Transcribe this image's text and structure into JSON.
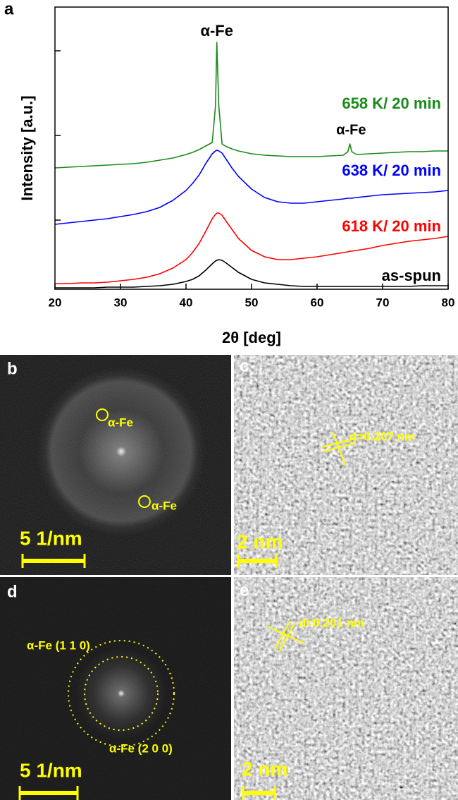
{
  "chart_data": {
    "type": "line",
    "panel_label": "a",
    "xlabel": "2θ [deg]",
    "ylabel": "Intensity [a.u.]",
    "x": [
      20,
      22,
      24,
      26,
      28,
      30,
      32,
      34,
      36,
      38,
      40,
      41,
      42,
      43,
      44,
      44.5,
      44.7,
      45,
      45.5,
      46,
      47,
      48,
      50,
      52,
      54,
      56,
      58,
      60,
      62,
      64,
      64.7,
      65,
      65.3,
      66,
      68,
      70,
      72,
      74,
      76,
      78,
      80
    ],
    "series": [
      {
        "name": "as-spun",
        "color": "#000000",
        "values": [
          2,
          2,
          2,
          2,
          3,
          3,
          3,
          4,
          5,
          7,
          11,
          14,
          19,
          27,
          36,
          40,
          41,
          42,
          41,
          38,
          31,
          24,
          14,
          9,
          7,
          5,
          4,
          4,
          4,
          4,
          4,
          4,
          4,
          4,
          4,
          4,
          4,
          4,
          5,
          5,
          5
        ]
      },
      {
        "name": "618 K/ 20 min",
        "color": "#ff0000",
        "values": [
          8,
          8,
          9,
          9,
          10,
          12,
          14,
          17,
          22,
          30,
          42,
          52,
          65,
          82,
          100,
          106,
          108,
          108,
          105,
          98,
          85,
          72,
          55,
          46,
          42,
          42,
          44,
          46,
          49,
          52,
          53,
          54,
          54,
          55,
          58,
          62,
          65,
          68,
          70,
          72,
          75
        ]
      },
      {
        "name": "638 K/ 20 min",
        "color": "#0000ff",
        "values": [
          92,
          94,
          96,
          98,
          100,
          103,
          106,
          110,
          116,
          126,
          140,
          150,
          162,
          178,
          192,
          196,
          197,
          196,
          193,
          186,
          172,
          160,
          142,
          130,
          124,
          122,
          122,
          124,
          126,
          128,
          129,
          129,
          129,
          130,
          132,
          134,
          135,
          136,
          137,
          138,
          140
        ]
      },
      {
        "name": "658 K/ 20 min",
        "color": "#1a8a1a",
        "values": [
          172,
          173,
          174,
          175,
          176,
          177,
          178,
          180,
          183,
          186,
          191,
          194,
          198,
          203,
          208,
          260,
          350,
          260,
          206,
          203,
          199,
          196,
          192,
          190,
          189,
          188,
          188,
          188,
          189,
          190,
          195,
          206,
          195,
          191,
          192,
          193,
          194,
          195,
          195,
          196,
          196
        ]
      }
    ],
    "annotations": [
      "α-Fe",
      "α-Fe"
    ],
    "xlim": [
      20,
      80
    ],
    "xticks": [
      20,
      30,
      40,
      50,
      60,
      70,
      80
    ],
    "ylim": [
      0,
      400
    ],
    "yticks": [
      98,
      218,
      338
    ]
  },
  "panels": [
    {
      "label": "b",
      "texts": [
        "α-Fe",
        "α-Fe",
        "5 1/nm"
      ]
    },
    {
      "label": "c",
      "texts": [
        "d=0.207 nm",
        "2 nm"
      ]
    },
    {
      "label": "d",
      "texts": [
        "α-Fe (1 1 0)",
        "α-Fe (2 0 0)",
        "5 1/nm"
      ]
    },
    {
      "label": "e",
      "texts": [
        "d=0.201 nm",
        "2 nm"
      ]
    }
  ]
}
